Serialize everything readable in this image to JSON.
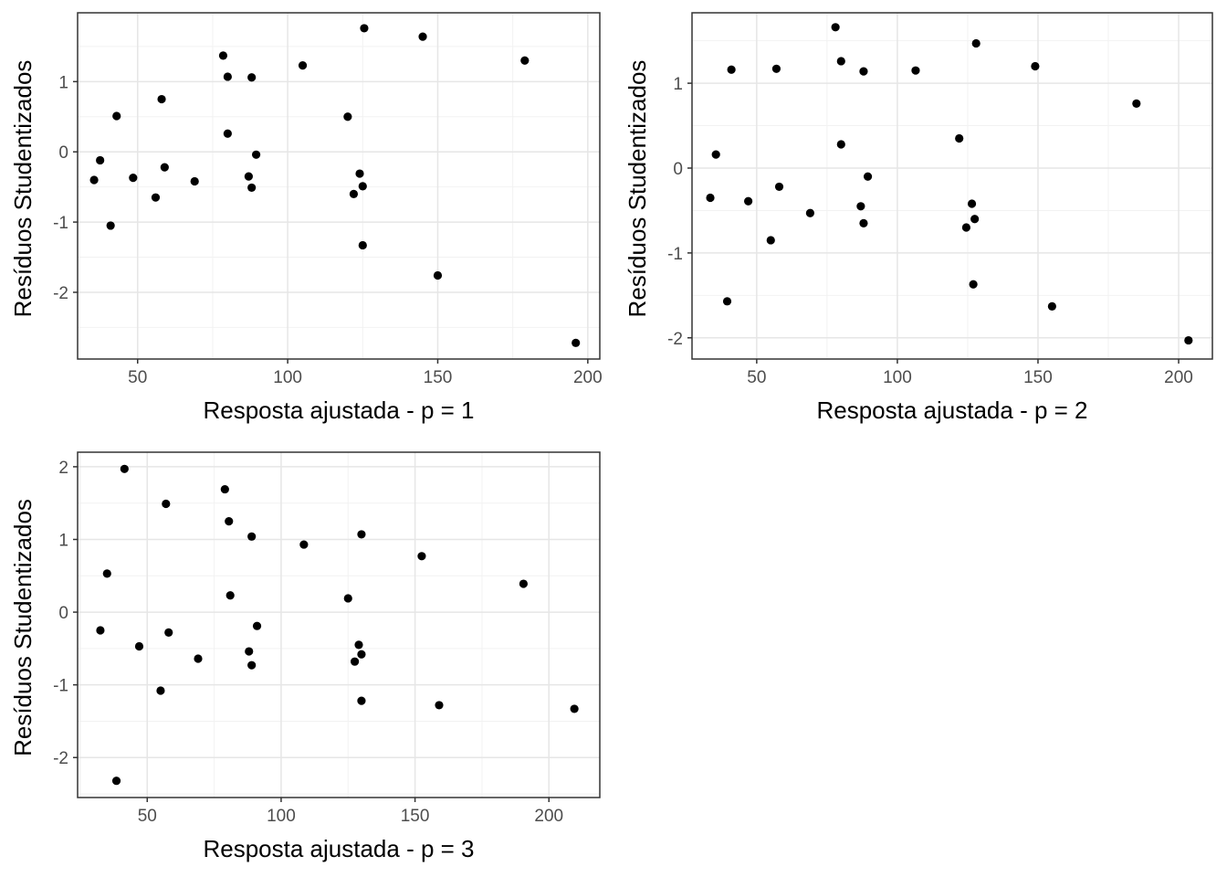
{
  "chart_data": [
    {
      "type": "scatter",
      "title": "",
      "xlabel": "Resposta ajustada - p = 1",
      "ylabel": "Resíduos Studentizados",
      "xlim": [
        30,
        204
      ],
      "ylim": [
        -2.95,
        1.98
      ],
      "xticks": [
        50,
        100,
        150,
        200
      ],
      "yticks": [
        -2,
        -1,
        0,
        1
      ],
      "grid": true,
      "legend": "none",
      "point_color": "#000000",
      "points": [
        [
          35.5,
          -0.4
        ],
        [
          37.5,
          -0.12
        ],
        [
          41,
          -1.05
        ],
        [
          43,
          0.51
        ],
        [
          48.5,
          -0.37
        ],
        [
          56,
          -0.65
        ],
        [
          58,
          0.75
        ],
        [
          59,
          -0.22
        ],
        [
          69,
          -0.42
        ],
        [
          78.5,
          1.37
        ],
        [
          80,
          1.07
        ],
        [
          80,
          0.26
        ],
        [
          87,
          -0.35
        ],
        [
          88,
          1.06
        ],
        [
          88,
          -0.51
        ],
        [
          89.5,
          -0.04
        ],
        [
          105,
          1.23
        ],
        [
          120,
          0.5
        ],
        [
          122,
          -0.6
        ],
        [
          124,
          -0.31
        ],
        [
          125,
          -1.33
        ],
        [
          125,
          -0.49
        ],
        [
          125.5,
          1.76
        ],
        [
          145,
          1.64
        ],
        [
          150,
          -1.76
        ],
        [
          179,
          1.3
        ],
        [
          196,
          -2.72
        ]
      ]
    },
    {
      "type": "scatter",
      "title": "",
      "xlabel": "Resposta ajustada - p = 2",
      "ylabel": "Resíduos Studentizados",
      "xlim": [
        27,
        212
      ],
      "ylim": [
        -2.25,
        1.83
      ],
      "xticks": [
        50,
        100,
        150,
        200
      ],
      "yticks": [
        -2,
        -1,
        0,
        1
      ],
      "grid": true,
      "legend": "none",
      "point_color": "#000000",
      "points": [
        [
          33.5,
          -0.35
        ],
        [
          35.5,
          0.16
        ],
        [
          39.5,
          -1.57
        ],
        [
          41,
          1.16
        ],
        [
          47,
          -0.39
        ],
        [
          55,
          -0.85
        ],
        [
          57,
          1.17
        ],
        [
          58,
          -0.22
        ],
        [
          69,
          -0.53
        ],
        [
          78,
          1.66
        ],
        [
          80,
          1.26
        ],
        [
          80,
          0.28
        ],
        [
          87,
          -0.45
        ],
        [
          88,
          1.14
        ],
        [
          88,
          -0.65
        ],
        [
          89.5,
          -0.1
        ],
        [
          106.5,
          1.15
        ],
        [
          122,
          0.35
        ],
        [
          124.5,
          -0.7
        ],
        [
          126.5,
          -0.42
        ],
        [
          127,
          -1.37
        ],
        [
          127.5,
          -0.6
        ],
        [
          128,
          1.47
        ],
        [
          149,
          1.2
        ],
        [
          155,
          -1.63
        ],
        [
          185,
          0.76
        ],
        [
          203.5,
          -2.03
        ]
      ]
    },
    {
      "type": "scatter",
      "title": "",
      "xlabel": "Resposta ajustada - p = 3",
      "ylabel": "Resíduos Studentizados",
      "xlim": [
        24,
        219
      ],
      "ylim": [
        -2.55,
        2.2
      ],
      "xticks": [
        50,
        100,
        150,
        200
      ],
      "yticks": [
        -2,
        -1,
        0,
        1,
        2
      ],
      "grid": true,
      "legend": "none",
      "point_color": "#000000",
      "points": [
        [
          32.5,
          -0.25
        ],
        [
          35,
          0.53
        ],
        [
          38.5,
          -2.32
        ],
        [
          41.5,
          1.97
        ],
        [
          47,
          -0.47
        ],
        [
          55,
          -1.08
        ],
        [
          57,
          1.49
        ],
        [
          58,
          -0.28
        ],
        [
          69,
          -0.64
        ],
        [
          79,
          1.69
        ],
        [
          80.5,
          1.25
        ],
        [
          81,
          0.23
        ],
        [
          88,
          -0.54
        ],
        [
          89,
          1.04
        ],
        [
          89,
          -0.73
        ],
        [
          91,
          -0.19
        ],
        [
          108.5,
          0.93
        ],
        [
          125,
          0.19
        ],
        [
          127.5,
          -0.68
        ],
        [
          129,
          -0.45
        ],
        [
          130,
          -1.22
        ],
        [
          130,
          -0.58
        ],
        [
          130,
          1.07
        ],
        [
          152.5,
          0.77
        ],
        [
          159,
          -1.28
        ],
        [
          190.5,
          0.39
        ],
        [
          209.5,
          -1.33
        ]
      ]
    }
  ]
}
